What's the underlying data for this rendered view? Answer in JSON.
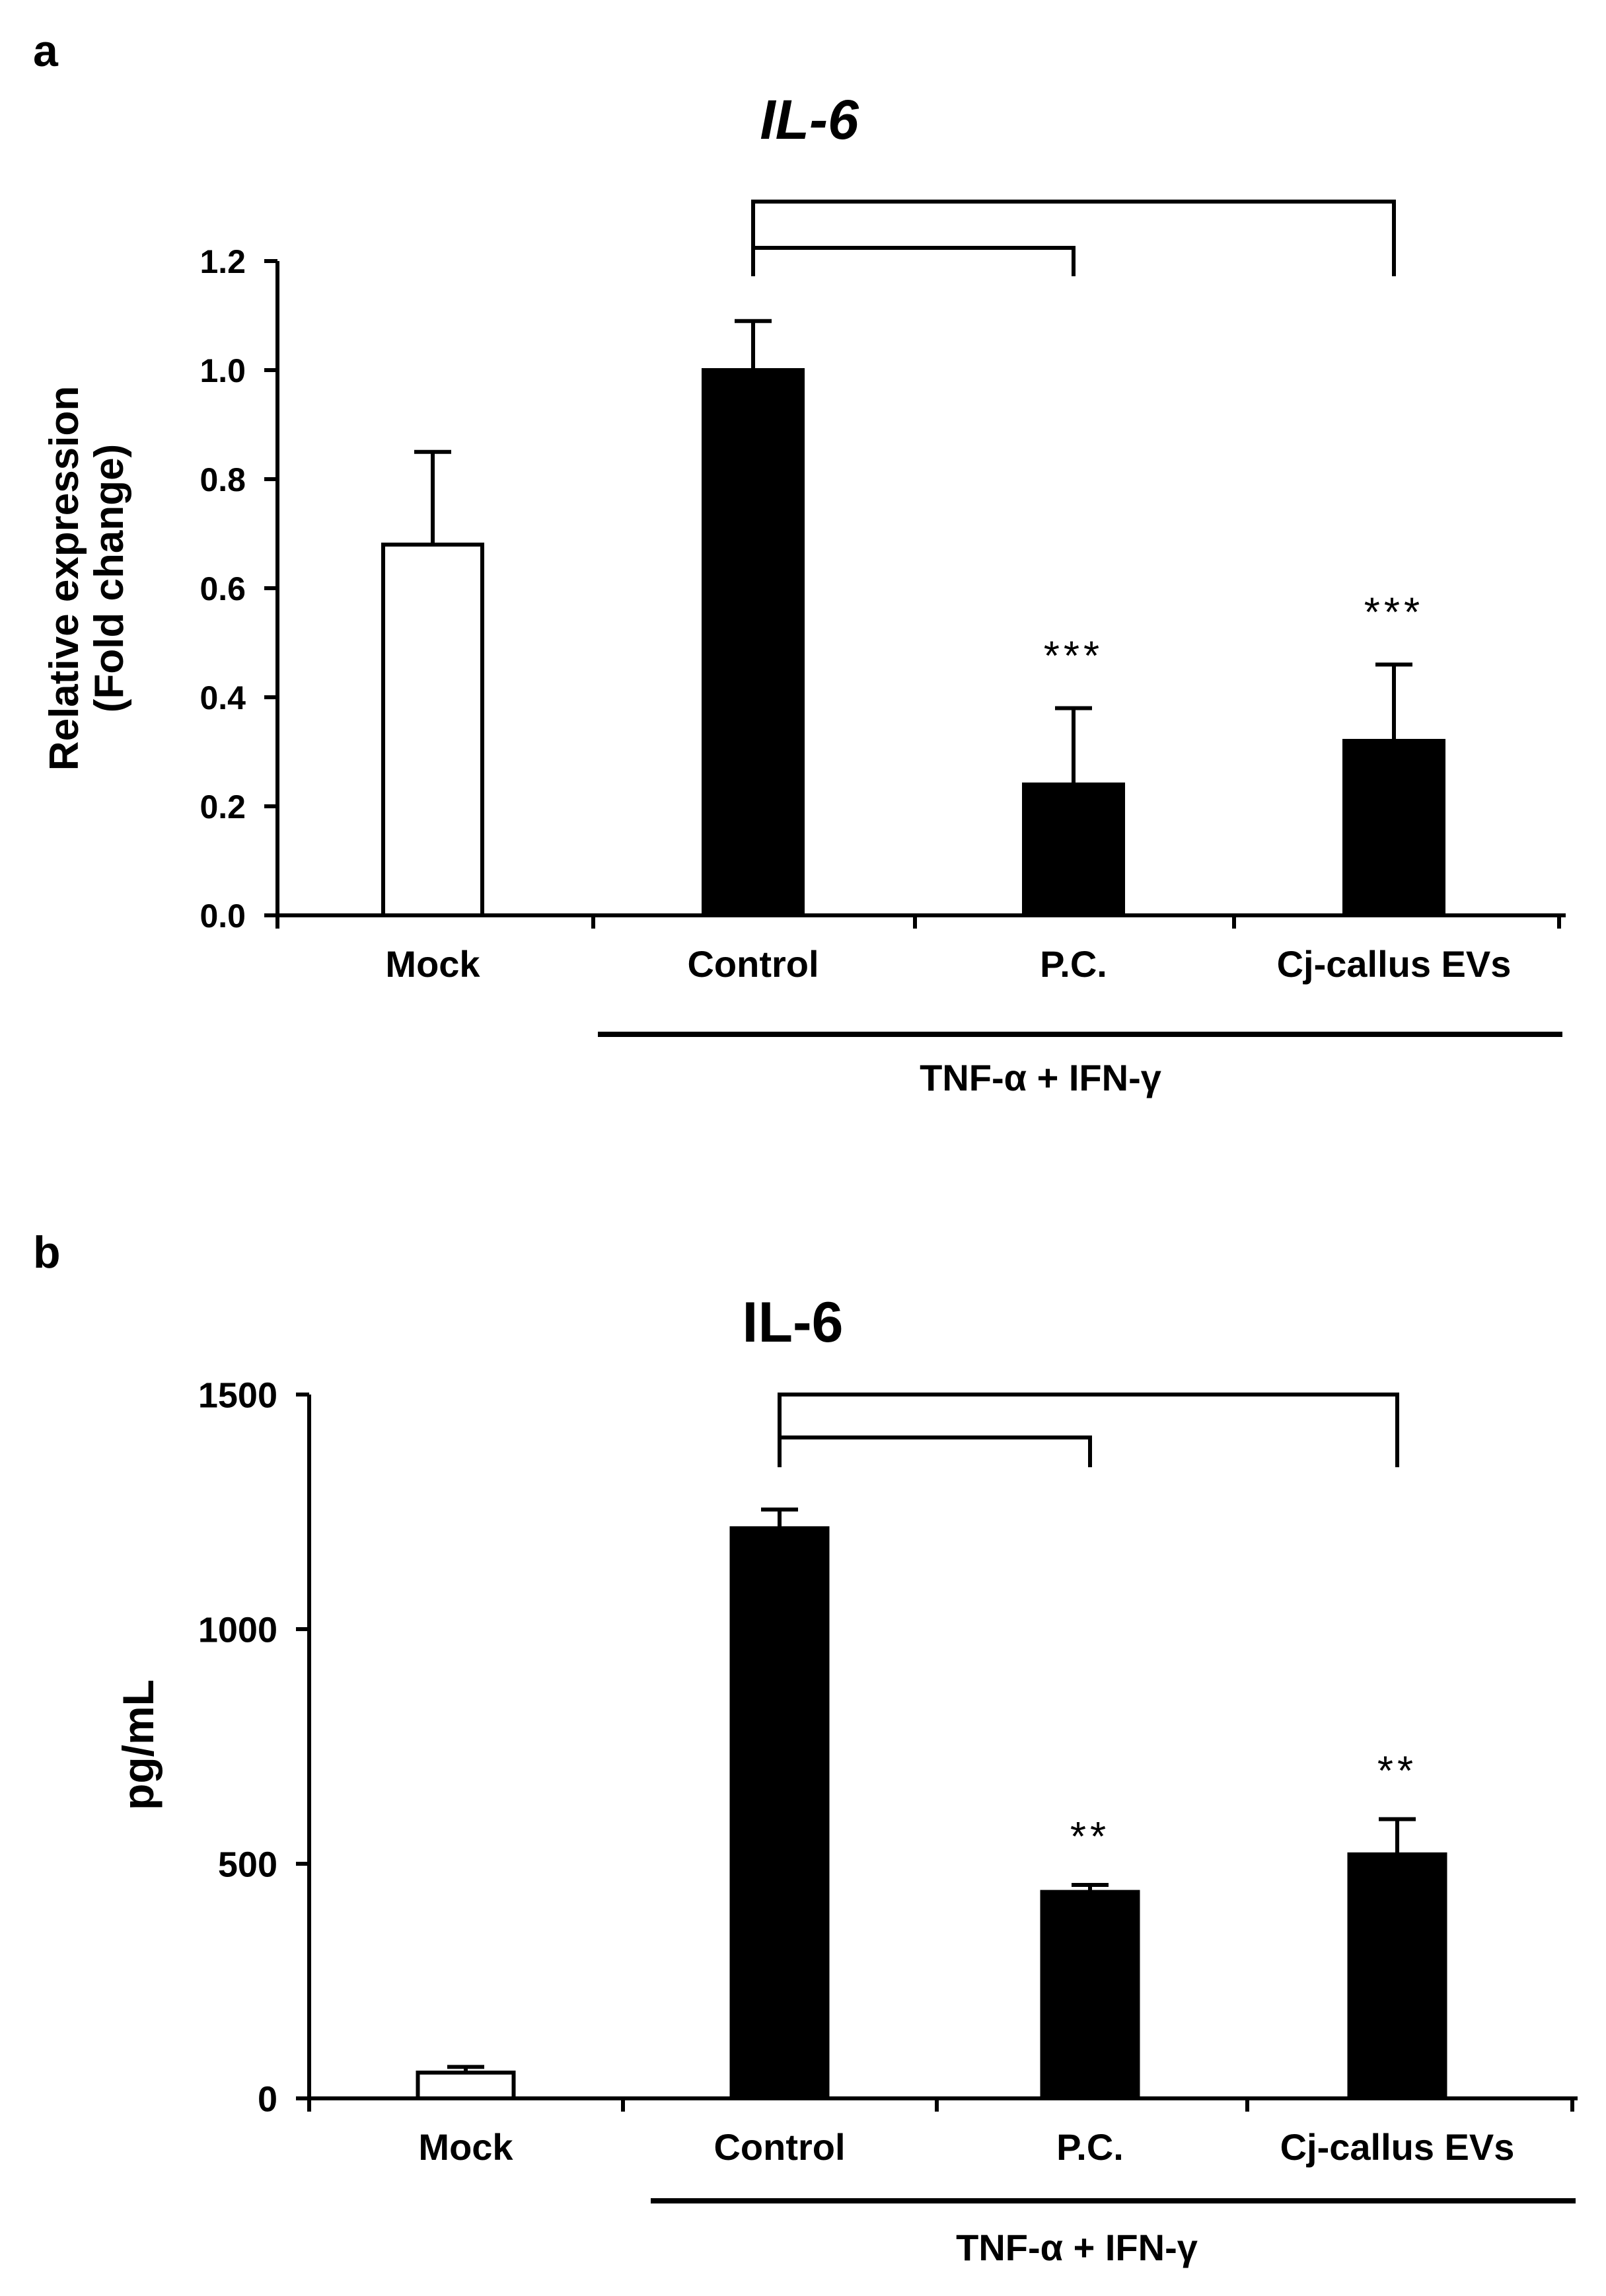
{
  "colors": {
    "filled_bar": "#000000",
    "open_bar": "#ffffff",
    "axis": "#000000"
  },
  "chart_data": [
    {
      "type": "bar",
      "panel_label": "a",
      "title": "IL-6",
      "title_italic": true,
      "ylabel_line1": "Relative expression",
      "ylabel_line2": "(Fold change)",
      "xlabel": "",
      "ylim": [
        0,
        1.2
      ],
      "yticks": [
        0.0,
        0.2,
        0.4,
        0.6,
        0.8,
        1.0,
        1.2
      ],
      "ytick_labels": [
        "0.0",
        "0.2",
        "0.4",
        "0.6",
        "0.8",
        "1.0",
        "1.2"
      ],
      "categories": [
        "Mock",
        "Control",
        "P.C.",
        "Cj-callus EVs"
      ],
      "values": [
        0.68,
        1.0,
        0.24,
        0.32
      ],
      "errors": [
        0.17,
        0.09,
        0.14,
        0.14
      ],
      "bar_fill": [
        "open",
        "filled",
        "filled",
        "filled"
      ],
      "significance": [
        "",
        "",
        "***",
        "***"
      ],
      "comparisons": [
        {
          "from": "Control",
          "to": "P.C."
        },
        {
          "from": "Control",
          "to": "Cj-callus EVs"
        }
      ],
      "treatment_label": "TNF-α + IFN-γ",
      "treatment_groups": [
        "Control",
        "P.C.",
        "Cj-callus EVs"
      ]
    },
    {
      "type": "bar",
      "panel_label": "b",
      "title": "IL-6",
      "title_italic": false,
      "ylabel_line1": "pg/mL",
      "ylabel_line2": "",
      "xlabel": "",
      "ylim": [
        0,
        1500
      ],
      "yticks": [
        0,
        500,
        1000,
        1500
      ],
      "ytick_labels": [
        "0",
        "500",
        "1000",
        "1500"
      ],
      "categories": [
        "Mock",
        "Control",
        "P.C.",
        "Cj-callus EVs"
      ],
      "values": [
        55,
        1215,
        440,
        520
      ],
      "errors": [
        12,
        40,
        15,
        75
      ],
      "bar_fill": [
        "open",
        "filled",
        "filled",
        "filled"
      ],
      "significance": [
        "",
        "",
        "**",
        "**"
      ],
      "comparisons": [
        {
          "from": "Control",
          "to": "P.C."
        },
        {
          "from": "Control",
          "to": "Cj-callus EVs"
        }
      ],
      "treatment_label": "TNF-α + IFN-γ",
      "treatment_groups": [
        "Control",
        "P.C.",
        "Cj-callus EVs"
      ]
    }
  ]
}
